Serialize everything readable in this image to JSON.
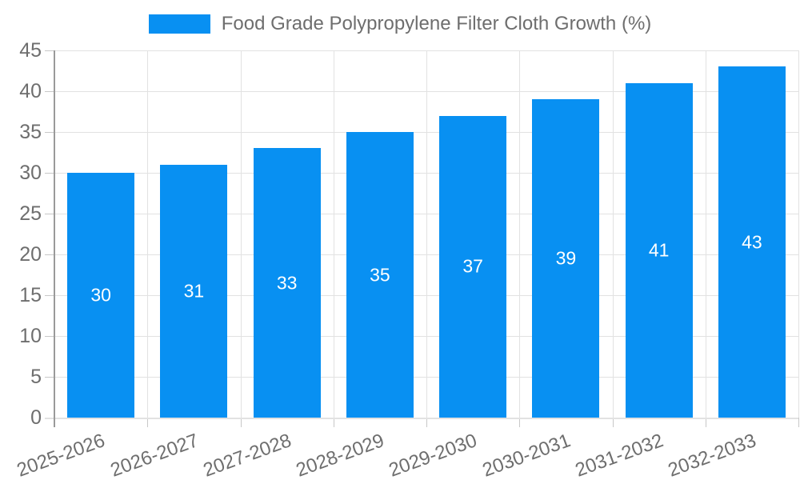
{
  "chart_data": {
    "type": "bar",
    "title": "Food Grade Polypropylene Filter Cloth Growth (%)",
    "categories": [
      "2025-2026",
      "2026-2027",
      "2027-2028",
      "2028-2029",
      "2029-2030",
      "2030-2031",
      "2031-2032",
      "2032-2033"
    ],
    "values": [
      30,
      31,
      33,
      35,
      37,
      39,
      41,
      43
    ],
    "value_labels": [
      "30",
      "31",
      "33",
      "35",
      "37",
      "39",
      "41",
      "43"
    ],
    "xlabel": "",
    "ylabel": "",
    "ylim": [
      0,
      45
    ],
    "yticks": [
      0,
      5,
      10,
      15,
      20,
      25,
      30,
      35,
      40,
      45
    ],
    "grid": true,
    "legend_position": "top-center",
    "legend_label": "Food Grade Polypropylene Filter Cloth Growth (%)",
    "colors": {
      "bar": "#0890f2",
      "text": "#6e6e6e",
      "grid": "#e2e2e2",
      "axis": "#9a9a9a",
      "tick": "#c8c8c8",
      "value_label": "#ffffff",
      "background": "#ffffff"
    }
  }
}
